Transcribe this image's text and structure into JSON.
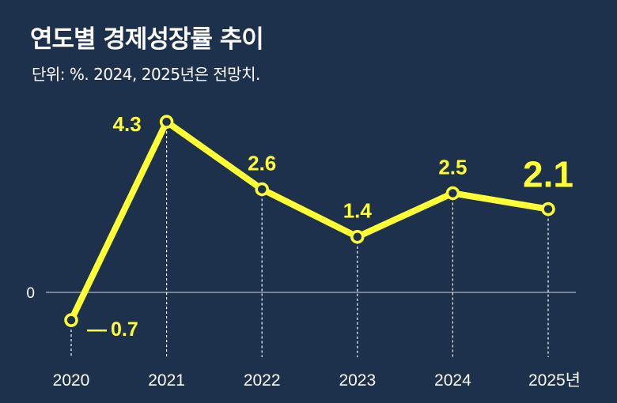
{
  "header": {
    "title": "연도별 경제성장률 추이",
    "subtitle": "단위: %. 2024, 2025년은 전망치."
  },
  "chart_data": {
    "type": "line",
    "title": "연도별 경제성장률 추이",
    "subtitle": "단위: %. 2024, 2025년은 전망치.",
    "categories": [
      "2020",
      "2021",
      "2022",
      "2023",
      "2024",
      "2025년"
    ],
    "series": [
      {
        "values": [
          -0.7,
          4.3,
          2.6,
          1.4,
          2.5,
          2.1
        ],
        "labels": [
          "— 0.7",
          "4.3",
          "2.6",
          "1.4",
          "2.5",
          "2.1"
        ]
      }
    ],
    "zero_label": "0",
    "grid": false,
    "colors": {
      "background": "#1e314c",
      "line": "#ffff33",
      "marker_fill": "#1e314c",
      "text": "#ffffff",
      "data_label": "#ffff33",
      "axis": "#cfd6e0"
    }
  }
}
